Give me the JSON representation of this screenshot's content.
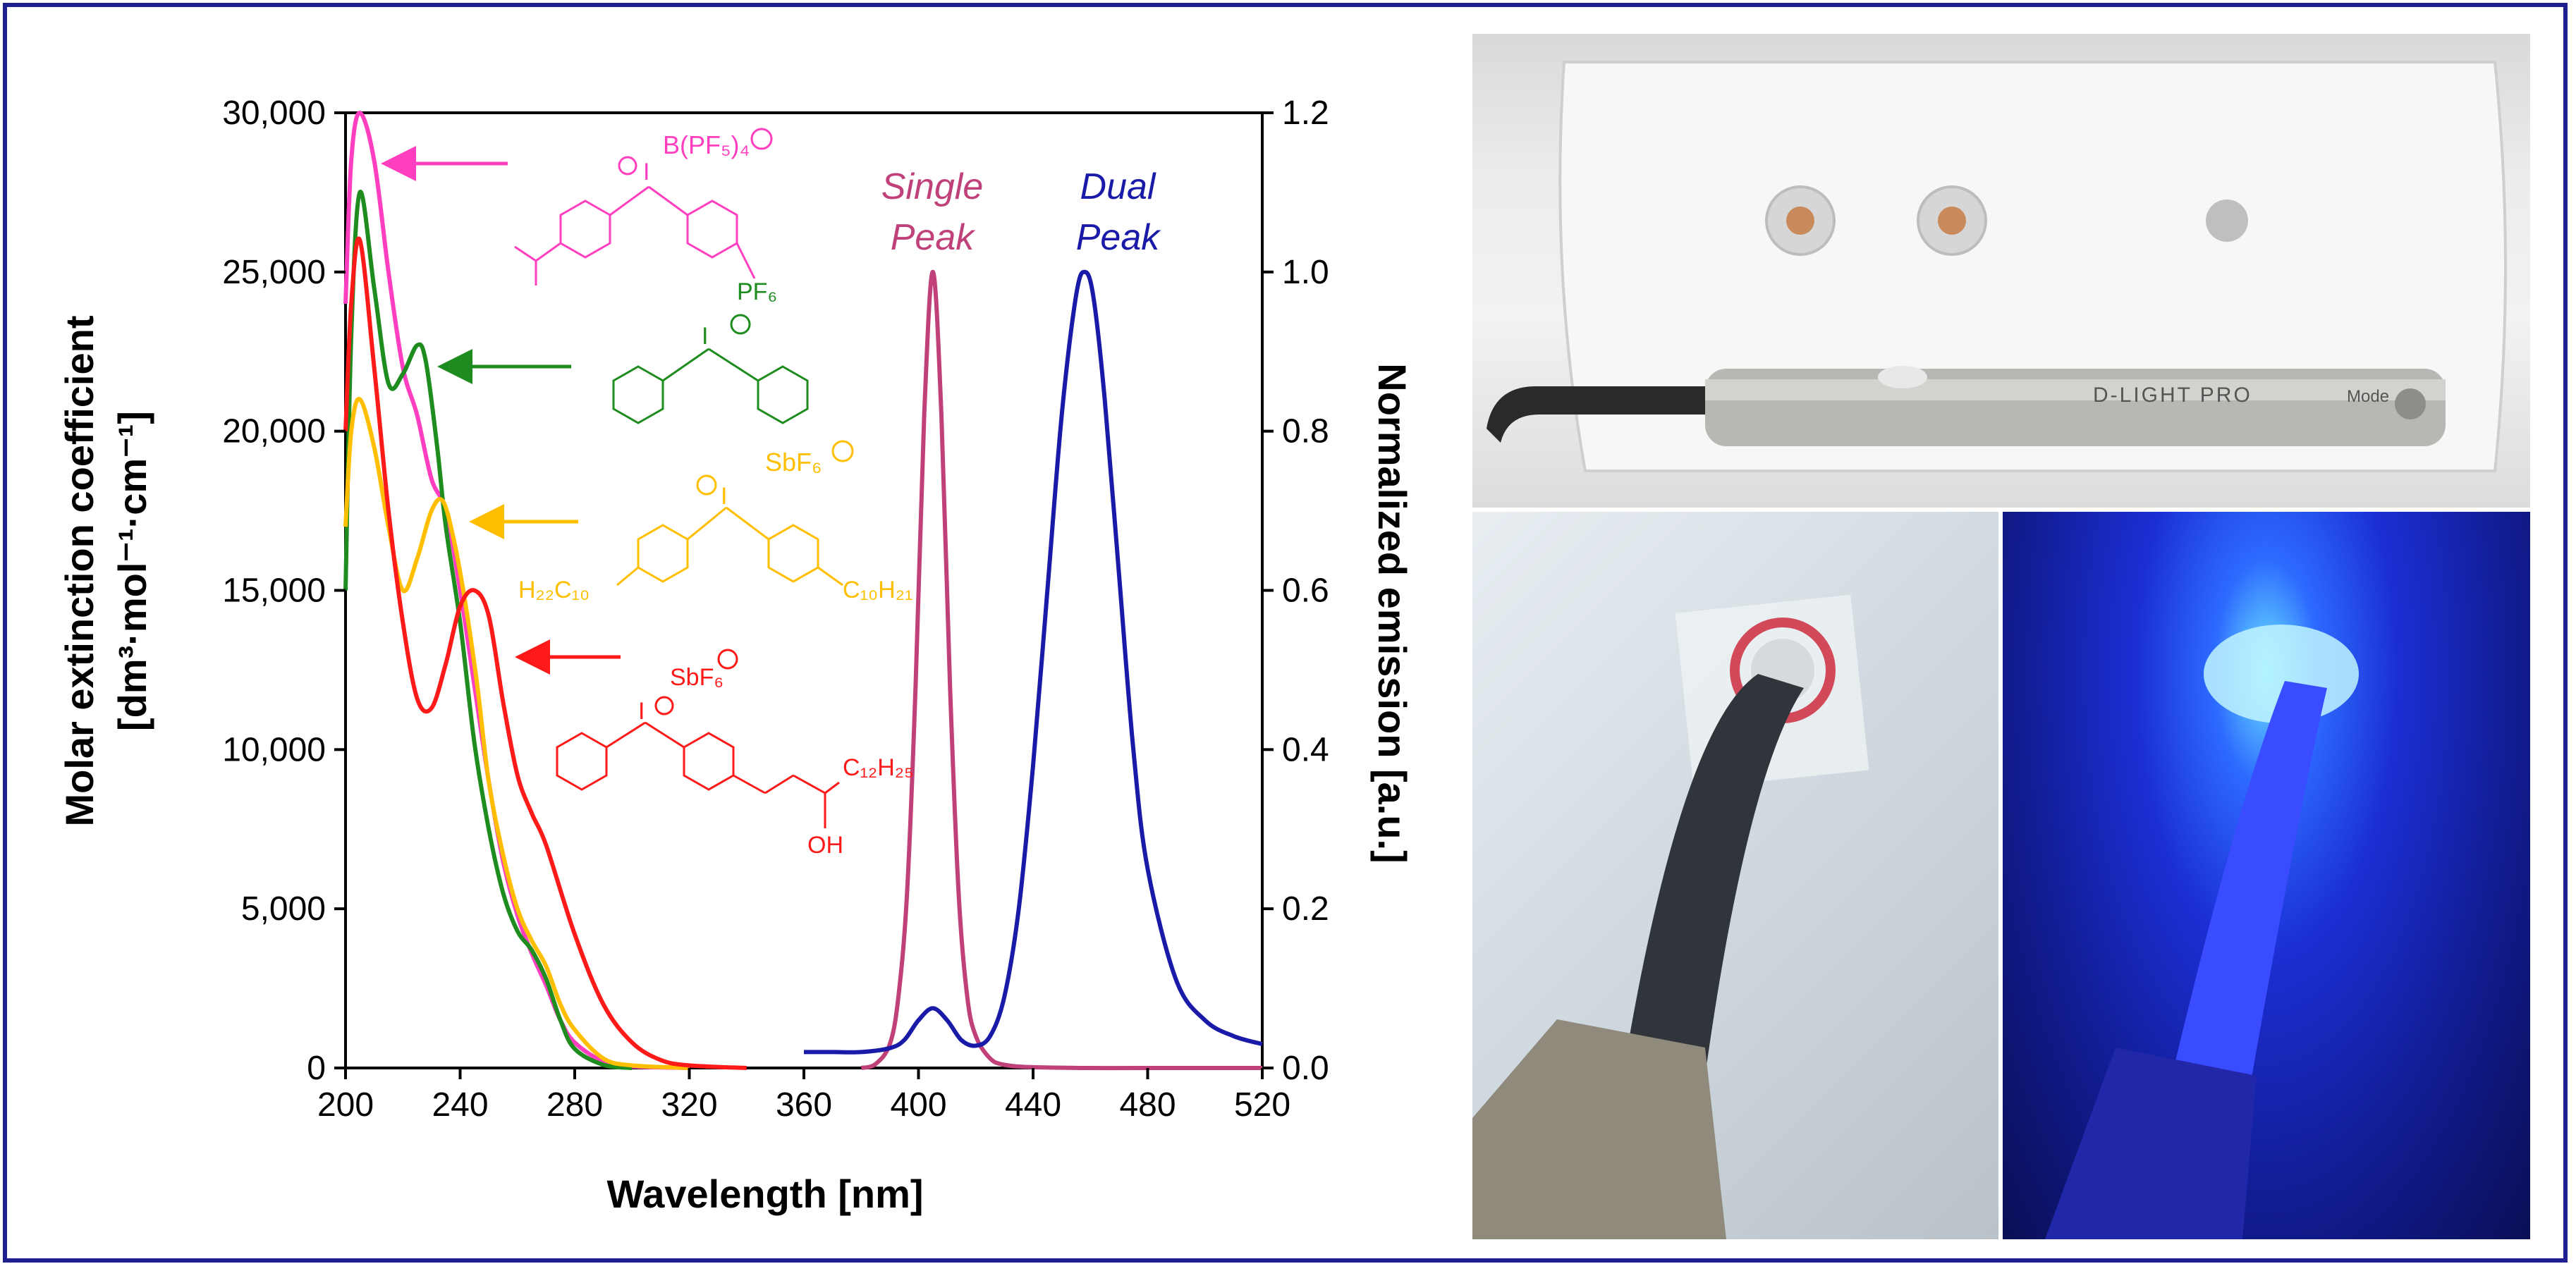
{
  "chart_data": {
    "type": "line",
    "xlabel": "Wavelength [nm]",
    "ylabel_left": [
      "Molar extinction coefficient",
      "[dm³·mol⁻¹·cm⁻¹]"
    ],
    "ylabel_right": "Normalized emission [a.u.]",
    "xlim": [
      200,
      520
    ],
    "ylim_left": [
      0,
      30000
    ],
    "ylim_right": [
      0,
      1.2
    ],
    "x_ticks": [
      "200",
      "240",
      "280",
      "320",
      "360",
      "400",
      "440",
      "480",
      "520"
    ],
    "x_tick_values": [
      200,
      240,
      280,
      320,
      360,
      400,
      440,
      480,
      520
    ],
    "y_left_ticks": [
      "0",
      "5,000",
      "10,000",
      "15,000",
      "20,000",
      "25,000",
      "30,000"
    ],
    "y_left_tick_values": [
      0,
      5000,
      10000,
      15000,
      20000,
      25000,
      30000
    ],
    "y_right_ticks": [
      "0.0",
      "0.2",
      "0.4",
      "0.6",
      "0.8",
      "1.0",
      "1.2"
    ],
    "y_right_tick_values": [
      0,
      0.2,
      0.4,
      0.6,
      0.8,
      1.0,
      1.2
    ],
    "grid": false,
    "absorption_series": [
      {
        "color": "#ff3fbf",
        "axis": "left",
        "x": [
          200,
          202,
          205,
          210,
          215,
          220,
          225,
          230,
          235,
          240,
          245,
          250,
          255,
          260,
          265,
          270,
          275,
          280,
          290,
          300,
          320
        ],
        "y": [
          24000,
          28500,
          30000,
          28500,
          25000,
          22000,
          20500,
          18500,
          17500,
          15000,
          12000,
          9000,
          6500,
          4800,
          3600,
          2600,
          1500,
          800,
          200,
          50,
          0
        ]
      },
      {
        "color": "#1e8c1e",
        "axis": "left",
        "x": [
          200,
          202,
          205,
          210,
          215,
          220,
          225,
          228,
          232,
          235,
          240,
          245,
          250,
          255,
          260,
          265,
          270,
          275,
          280,
          290,
          300
        ],
        "y": [
          15000,
          23000,
          27500,
          24500,
          21500,
          21800,
          22700,
          22200,
          19500,
          17000,
          14000,
          10200,
          7500,
          5500,
          4300,
          3700,
          2800,
          1500,
          600,
          100,
          0
        ]
      },
      {
        "color": "#ffbf00",
        "axis": "left",
        "x": [
          200,
          202,
          205,
          210,
          215,
          220,
          225,
          230,
          234,
          238,
          242,
          246,
          250,
          255,
          260,
          265,
          270,
          275,
          280,
          290,
          300,
          320
        ],
        "y": [
          17000,
          20000,
          21000,
          19500,
          17000,
          15000,
          16000,
          17500,
          17800,
          16500,
          14500,
          12000,
          9000,
          6700,
          5000,
          4000,
          3200,
          2000,
          1200,
          300,
          80,
          0
        ]
      },
      {
        "color": "#ff1a1a",
        "axis": "left",
        "x": [
          200,
          202,
          205,
          210,
          215,
          220,
          225,
          230,
          235,
          240,
          245,
          250,
          255,
          260,
          265,
          270,
          280,
          290,
          300,
          310,
          320,
          340
        ],
        "y": [
          20000,
          24000,
          26000,
          22000,
          17500,
          14000,
          11600,
          11300,
          12700,
          14500,
          15000,
          14200,
          11500,
          9200,
          8000,
          7000,
          4200,
          2000,
          800,
          250,
          80,
          0
        ]
      }
    ],
    "emission_series": [
      {
        "name": "Single Peak",
        "color": "#c0407a",
        "axis": "right",
        "x": [
          380,
          385,
          390,
          393,
          396,
          399,
          402,
          405,
          408,
          411,
          414,
          417,
          420,
          425,
          430,
          440,
          460,
          480,
          520
        ],
        "y": [
          0,
          0.005,
          0.03,
          0.09,
          0.22,
          0.48,
          0.82,
          1.0,
          0.82,
          0.48,
          0.22,
          0.09,
          0.04,
          0.012,
          0.004,
          0.001,
          0,
          0,
          0
        ]
      },
      {
        "name": "Dual Peak",
        "color": "#1a1aa8",
        "axis": "right",
        "x": [
          360,
          370,
          380,
          390,
          395,
          400,
          405,
          410,
          415,
          420,
          425,
          430,
          435,
          440,
          445,
          450,
          455,
          458,
          461,
          465,
          470,
          475,
          480,
          490,
          500,
          510,
          520
        ],
        "y": [
          0.02,
          0.02,
          0.02,
          0.025,
          0.035,
          0.06,
          0.075,
          0.06,
          0.035,
          0.028,
          0.04,
          0.09,
          0.2,
          0.38,
          0.6,
          0.82,
          0.97,
          1.0,
          0.97,
          0.84,
          0.62,
          0.4,
          0.25,
          0.11,
          0.06,
          0.04,
          0.03
        ]
      }
    ],
    "annotations": {
      "single_peak": [
        "Single",
        "Peak"
      ],
      "dual_peak": [
        "Dual",
        "Peak"
      ]
    },
    "structure_labels": {
      "magenta_anion": "B(PF₅)₄",
      "green_anion": "PF₆",
      "orange_anion": "SbF₆",
      "orange_chain_left": "H₂₂C₁₀",
      "orange_chain_right": "C₁₀H₂₁",
      "red_anion": "SbF₆",
      "red_chain": "C₁₂H₂₅",
      "red_oh": "OH",
      "iodine": "I"
    }
  },
  "photos": {
    "device_label": "D-LIGHT PRO",
    "mode_label": "Mode"
  }
}
